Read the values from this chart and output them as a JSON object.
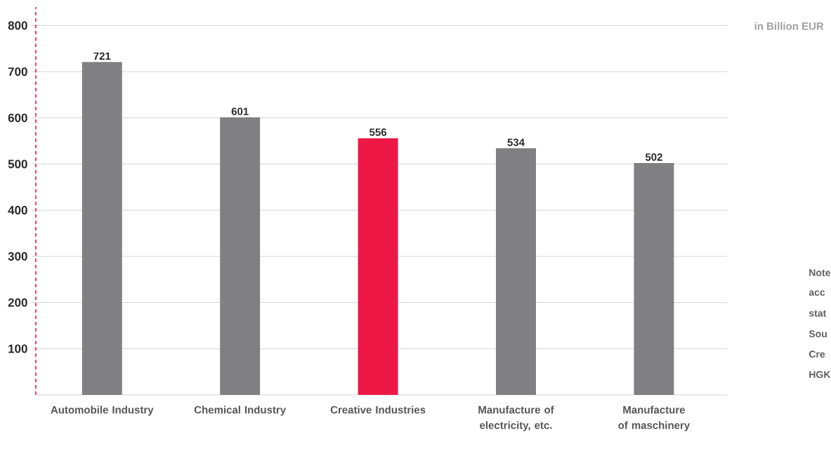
{
  "chart_data": {
    "type": "bar",
    "ylabel": "in Billion EUR",
    "categories": [
      "Automobile Industry",
      "Chemical Industry",
      "Creative Industries",
      "Manufacture of electricity, etc.",
      "Manufacture of maschinery"
    ],
    "values": [
      721,
      601,
      556,
      534,
      502
    ],
    "colors": [
      "#808082",
      "#808082",
      "#ed1846",
      "#808082",
      "#808082"
    ],
    "ylim": [
      0,
      840
    ],
    "yticks": [
      100,
      200,
      300,
      400,
      500,
      600,
      700,
      800
    ],
    "grid": "y",
    "data_labels": true,
    "annotations": [
      "Note",
      "acc",
      "stat",
      "Sou",
      "Cre",
      "HGK"
    ]
  }
}
